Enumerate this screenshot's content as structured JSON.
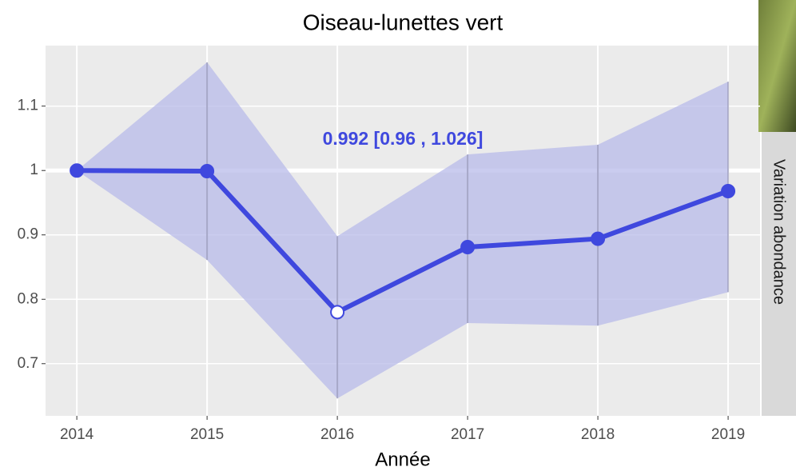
{
  "chart_data": {
    "type": "line",
    "title": "Oiseau-lunettes vert",
    "xlabel": "Année",
    "facet_label": "Variation abondance",
    "annotation": "0.992  [0.96 , 1.026]",
    "x": [
      2014,
      2015,
      2016,
      2017,
      2018,
      2019
    ],
    "values": [
      1.0,
      0.999,
      0.78,
      0.881,
      0.894,
      0.968
    ],
    "lower": [
      1.0,
      0.861,
      0.646,
      0.763,
      0.759,
      0.811
    ],
    "upper": [
      1.0,
      1.168,
      0.898,
      1.025,
      1.04,
      1.138
    ],
    "color": "#3f48de",
    "band_color": "#b8bbe9",
    "marker_fills": [
      "#3f48de",
      "#3f48de",
      "#ffffff",
      "#3f48de",
      "#3f48de",
      "#3f48de"
    ],
    "xlim": [
      2013.76,
      2019.245
    ],
    "ylim": [
      0.619,
      1.194
    ],
    "xticks": [
      2014,
      2015,
      2016,
      2017,
      2018,
      2019
    ],
    "yticks": [
      0.7,
      0.8,
      0.9,
      1.0,
      1.1
    ],
    "hline": 1.0,
    "grid": true
  }
}
